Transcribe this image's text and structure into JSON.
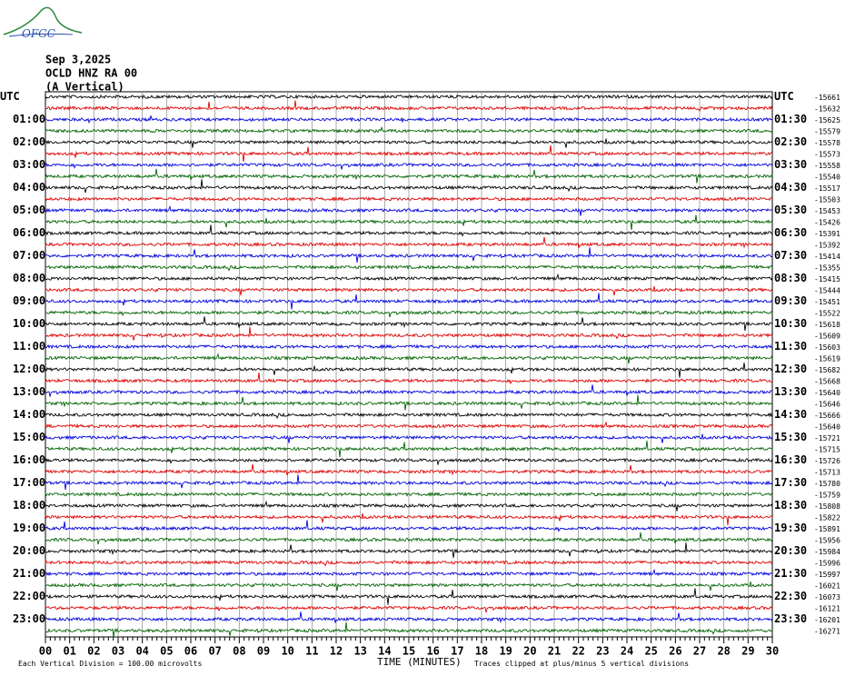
{
  "header": {
    "logo": "OFGC",
    "date": "Sep 3,2025",
    "station": "OCLD HNZ RA 00",
    "component": "(A Vertical)"
  },
  "left_labels": [
    "UTC",
    null,
    "01:00",
    null,
    "02:00",
    null,
    "03:00",
    null,
    "04:00",
    null,
    "05:00",
    null,
    "06:00",
    null,
    "07:00",
    null,
    "08:00",
    null,
    "09:00",
    null,
    "10:00",
    null,
    "11:00",
    null,
    "12:00",
    null,
    "13:00",
    null,
    "14:00",
    null,
    "15:00",
    null,
    "16:00",
    null,
    "17:00",
    null,
    "18:00",
    null,
    "19:00",
    null,
    "20:00",
    null,
    "21:00",
    null,
    "22:00",
    null,
    "23:00",
    null
  ],
  "right_labels": [
    "UTC",
    null,
    "01:30",
    null,
    "02:30",
    null,
    "03:30",
    null,
    "04:30",
    null,
    "05:30",
    null,
    "06:30",
    null,
    "07:30",
    null,
    "08:30",
    null,
    "09:30",
    null,
    "10:30",
    null,
    "11:30",
    null,
    "12:30",
    null,
    "13:30",
    null,
    "14:30",
    null,
    "15:30",
    null,
    "16:30",
    null,
    "17:30",
    null,
    "18:30",
    null,
    "19:30",
    null,
    "20:30",
    null,
    "21:30",
    null,
    "22:30",
    null,
    "23:30",
    null
  ],
  "offsets": [
    -15661,
    -15632,
    -15625,
    -15579,
    -15578,
    -15573,
    -15558,
    -15540,
    -15517,
    -15503,
    -15453,
    -15426,
    -15391,
    -15392,
    -15414,
    -15355,
    -15415,
    -15444,
    -15451,
    -15522,
    -15618,
    -15609,
    -15603,
    -15619,
    -15682,
    -15668,
    -15640,
    -15646,
    -15666,
    -15640,
    -15721,
    -15715,
    -15726,
    -15713,
    -15780,
    -15759,
    -15808,
    -15822,
    -15891,
    -15956,
    -15984,
    -15996,
    -15997,
    -16021,
    -16073,
    -16121,
    -16201,
    -16271
  ],
  "x_axis": {
    "ticks": [
      "00",
      "01",
      "02",
      "03",
      "04",
      "05",
      "06",
      "07",
      "08",
      "09",
      "10",
      "11",
      "12",
      "13",
      "14",
      "15",
      "16",
      "17",
      "18",
      "19",
      "20",
      "21",
      "22",
      "23",
      "24",
      "25",
      "26",
      "27",
      "28",
      "29",
      "30"
    ],
    "title": "TIME (MINUTES)"
  },
  "footer": {
    "scale": "Each Vertical Division =  100.00 microvolts",
    "clip": "Traces clipped at plus/minus 5 vertical divisions"
  }
}
